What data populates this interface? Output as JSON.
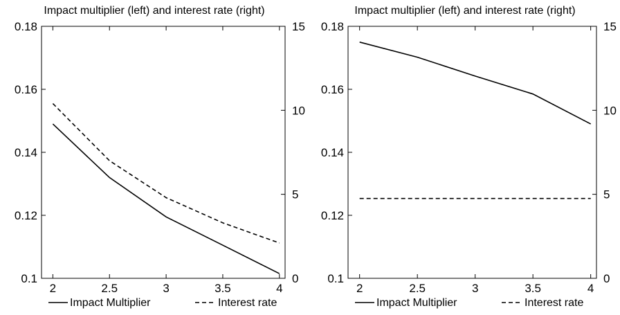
{
  "chart_data": [
    {
      "type": "line",
      "title": "Impact multiplier (left) and interest rate (right)",
      "x": [
        2,
        2.5,
        3,
        3.5,
        4
      ],
      "xlim": [
        1.9,
        4.05
      ],
      "ylim_left": [
        0.1,
        0.18
      ],
      "ylim_right": [
        0,
        15
      ],
      "xticks": [
        "2",
        "2.5",
        "3",
        "3.5",
        "4"
      ],
      "yticks_left": [
        "0.1",
        "0.12",
        "0.14",
        "0.16",
        "0.18"
      ],
      "yticks_right": [
        "0",
        "5",
        "10",
        "15"
      ],
      "grid": false,
      "legend_position": "bottom",
      "series": [
        {
          "name": "Impact Multiplier",
          "axis": "left",
          "style": "solid",
          "x": [
            2,
            2.5,
            3,
            3.5,
            4
          ],
          "values": [
            0.149,
            0.132,
            0.1195,
            0.1105,
            0.1015
          ]
        },
        {
          "name": "Interest rate",
          "axis": "right",
          "style": "dashed",
          "x": [
            2,
            2.5,
            3,
            3.5,
            4
          ],
          "values": [
            10.4,
            7.0,
            4.8,
            3.3,
            2.1
          ]
        }
      ]
    },
    {
      "type": "line",
      "title": "Impact multiplier (left) and interest rate (right)",
      "x": [
        2,
        2.5,
        3,
        3.5,
        4
      ],
      "xlim": [
        1.9,
        4.05
      ],
      "ylim_left": [
        0.1,
        0.18
      ],
      "ylim_right": [
        0,
        15
      ],
      "xticks": [
        "2",
        "2.5",
        "3",
        "3.5",
        "4"
      ],
      "yticks_left": [
        "0.1",
        "0.12",
        "0.14",
        "0.16",
        "0.18"
      ],
      "yticks_right": [
        "0",
        "5",
        "10",
        "15"
      ],
      "grid": false,
      "legend_position": "bottom",
      "series": [
        {
          "name": "Impact Multiplier",
          "axis": "left",
          "style": "solid",
          "x": [
            2,
            2.5,
            3,
            3.5,
            4
          ],
          "values": [
            0.175,
            0.1702,
            0.1642,
            0.1585,
            0.149
          ]
        },
        {
          "name": "Interest rate",
          "axis": "right",
          "style": "dashed",
          "x": [
            2,
            2.5,
            3,
            3.5,
            4
          ],
          "values": [
            4.75,
            4.75,
            4.75,
            4.75,
            4.75
          ]
        }
      ]
    }
  ]
}
